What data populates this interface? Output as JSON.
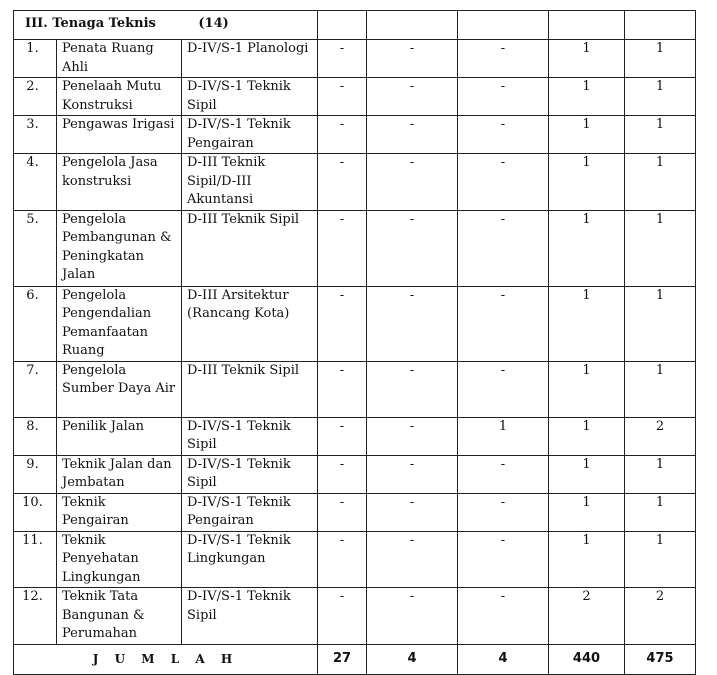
{
  "section": {
    "title": "III. Tenaga Teknis",
    "count": "(14)"
  },
  "rows": [
    {
      "no": "1.",
      "jabatan": "Penata Ruang Ahli",
      "pendidikan": "D-IV/S-1 Planologi",
      "c1": "-",
      "c2": "-",
      "c3": "-",
      "c4": "1",
      "c5": "1"
    },
    {
      "no": "2.",
      "jabatan": "Penelaah Mutu Konstruksi",
      "pendidikan": "D-IV/S-1 Teknik Sipil",
      "c1": "-",
      "c2": "-",
      "c3": "-",
      "c4": "1",
      "c5": "1"
    },
    {
      "no": "3.",
      "jabatan": "Pengawas Irigasi",
      "pendidikan": "D-IV/S-1 Teknik Pengairan",
      "c1": "-",
      "c2": "-",
      "c3": "-",
      "c4": "1",
      "c5": "1"
    },
    {
      "no": "4.",
      "jabatan": "Pengelola Jasa konstruksi",
      "pendidikan": "D-III Teknik Sipil/D-III Akuntansi",
      "c1": "-",
      "c2": "-",
      "c3": "-",
      "c4": "1",
      "c5": "1"
    },
    {
      "no": "5.",
      "jabatan": "Pengelola Pembangunan & Peningkatan Jalan",
      "pendidikan": "D-III Teknik Sipil",
      "c1": "-",
      "c2": "-",
      "c3": "-",
      "c4": "1",
      "c5": "1"
    },
    {
      "no": "6.",
      "jabatan": "Pengelola Pengendalian Pemanfaatan Ruang",
      "pendidikan": "D-III Arsitektur (Rancang Kota)",
      "c1": "-",
      "c2": "-",
      "c3": "-",
      "c4": "1",
      "c5": "1"
    },
    {
      "no": "7.",
      "jabatan": "Pengelola Sumber Daya Air",
      "pendidikan": "D-III Teknik Sipil",
      "c1": "-",
      "c2": "-",
      "c3": "-",
      "c4": "1",
      "c5": "1"
    },
    {
      "no": "8.",
      "jabatan": "Penilik Jalan",
      "pendidikan": "D-IV/S-1 Teknik Sipil",
      "c1": "-",
      "c2": "-",
      "c3": "1",
      "c4": "1",
      "c5": "2"
    },
    {
      "no": "9.",
      "jabatan": "Teknik Jalan dan Jembatan",
      "pendidikan": "D-IV/S-1 Teknik Sipil",
      "c1": "-",
      "c2": "-",
      "c3": "-",
      "c4": "1",
      "c5": "1"
    },
    {
      "no": "10.",
      "jabatan": "Teknik Pengairan",
      "pendidikan": "D-IV/S-1 Teknik Pengairan",
      "c1": "-",
      "c2": "-",
      "c3": "-",
      "c4": "1",
      "c5": "1"
    },
    {
      "no": "11.",
      "jabatan": "Teknik Penyehatan Lingkungan",
      "pendidikan": "D-IV/S-1 Teknik Lingkungan",
      "c1": "-",
      "c2": "-",
      "c3": "-",
      "c4": "1",
      "c5": "1"
    },
    {
      "no": "12.",
      "jabatan": "Teknik Tata Bangunan & Perumahan",
      "pendidikan": "D-IV/S-1 Teknik Sipil",
      "c1": "-",
      "c2": "-",
      "c3": "-",
      "c4": "2",
      "c5": "2"
    }
  ],
  "total": {
    "label": "J U M L A H",
    "c1": "27",
    "c2": "4",
    "c3": "4",
    "c4": "440",
    "c5": "475"
  }
}
